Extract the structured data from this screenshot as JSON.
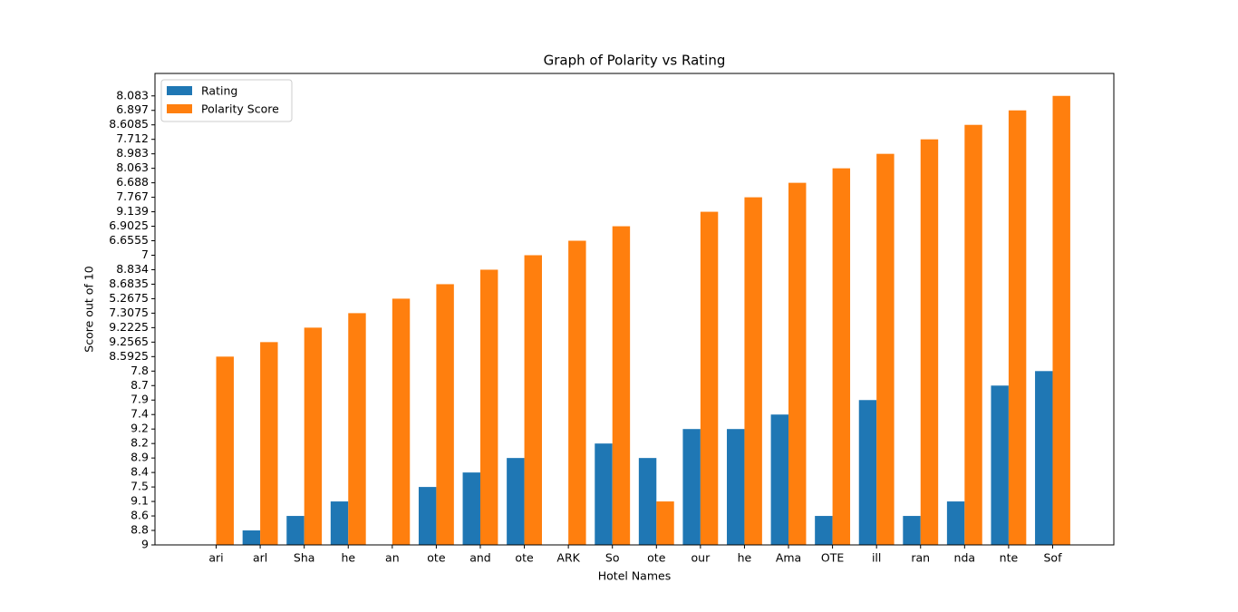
{
  "chart_data": {
    "type": "bar",
    "title": "Graph of Polarity vs Rating",
    "x_label": "Hotel Names",
    "y_label": "Score out of 10",
    "categories": [
      "ari",
      "arl",
      "Sha",
      "he",
      "an",
      "ote",
      "and",
      "ote",
      "ARK",
      "So",
      "ote",
      "our",
      "he",
      "Ama",
      "OTE",
      "ill",
      "ran",
      "nda",
      "nte",
      "Sof"
    ],
    "series": [
      {
        "name": "Rating",
        "color": "#1f77b4",
        "values": [
          0,
          1,
          2,
          3,
          0,
          4,
          5,
          6,
          0,
          7,
          6,
          8,
          8,
          9,
          2,
          10,
          2,
          3,
          11,
          12
        ]
      },
      {
        "name": "Polarity Score",
        "color": "#ff7f0e",
        "values": [
          13,
          14,
          15,
          16,
          17,
          18,
          19,
          20,
          21,
          22,
          3,
          23,
          24,
          25,
          26,
          27,
          28,
          29,
          30,
          31
        ]
      }
    ],
    "ylim": [
      0,
      32.55
    ],
    "yticks": [
      {
        "value": 0,
        "label": "9"
      },
      {
        "value": 1,
        "label": "8.8"
      },
      {
        "value": 2,
        "label": "8.6"
      },
      {
        "value": 3,
        "label": "9.1"
      },
      {
        "value": 4,
        "label": "7.5"
      },
      {
        "value": 5,
        "label": "8.4"
      },
      {
        "value": 6,
        "label": "8.9"
      },
      {
        "value": 7,
        "label": "8.2"
      },
      {
        "value": 8,
        "label": "9.2"
      },
      {
        "value": 9,
        "label": "7.4"
      },
      {
        "value": 10,
        "label": "7.9"
      },
      {
        "value": 11,
        "label": "8.7"
      },
      {
        "value": 12,
        "label": "7.8"
      },
      {
        "value": 13,
        "label": "8.5925"
      },
      {
        "value": 14,
        "label": "9.2565"
      },
      {
        "value": 15,
        "label": "9.2225"
      },
      {
        "value": 16,
        "label": "7.3075"
      },
      {
        "value": 17,
        "label": "5.2675"
      },
      {
        "value": 18,
        "label": "8.6835"
      },
      {
        "value": 19,
        "label": "8.834"
      },
      {
        "value": 20,
        "label": "7"
      },
      {
        "value": 21,
        "label": "6.6555"
      },
      {
        "value": 22,
        "label": "6.9025"
      },
      {
        "value": 23,
        "label": "9.139"
      },
      {
        "value": 24,
        "label": "7.767"
      },
      {
        "value": 25,
        "label": "6.688"
      },
      {
        "value": 26,
        "label": "8.063"
      },
      {
        "value": 27,
        "label": "8.983"
      },
      {
        "value": 28,
        "label": "7.712"
      },
      {
        "value": 29,
        "label": "8.6085"
      },
      {
        "value": 30,
        "label": "6.897"
      },
      {
        "value": 31,
        "label": "8.083"
      }
    ],
    "legend": "upper left"
  }
}
